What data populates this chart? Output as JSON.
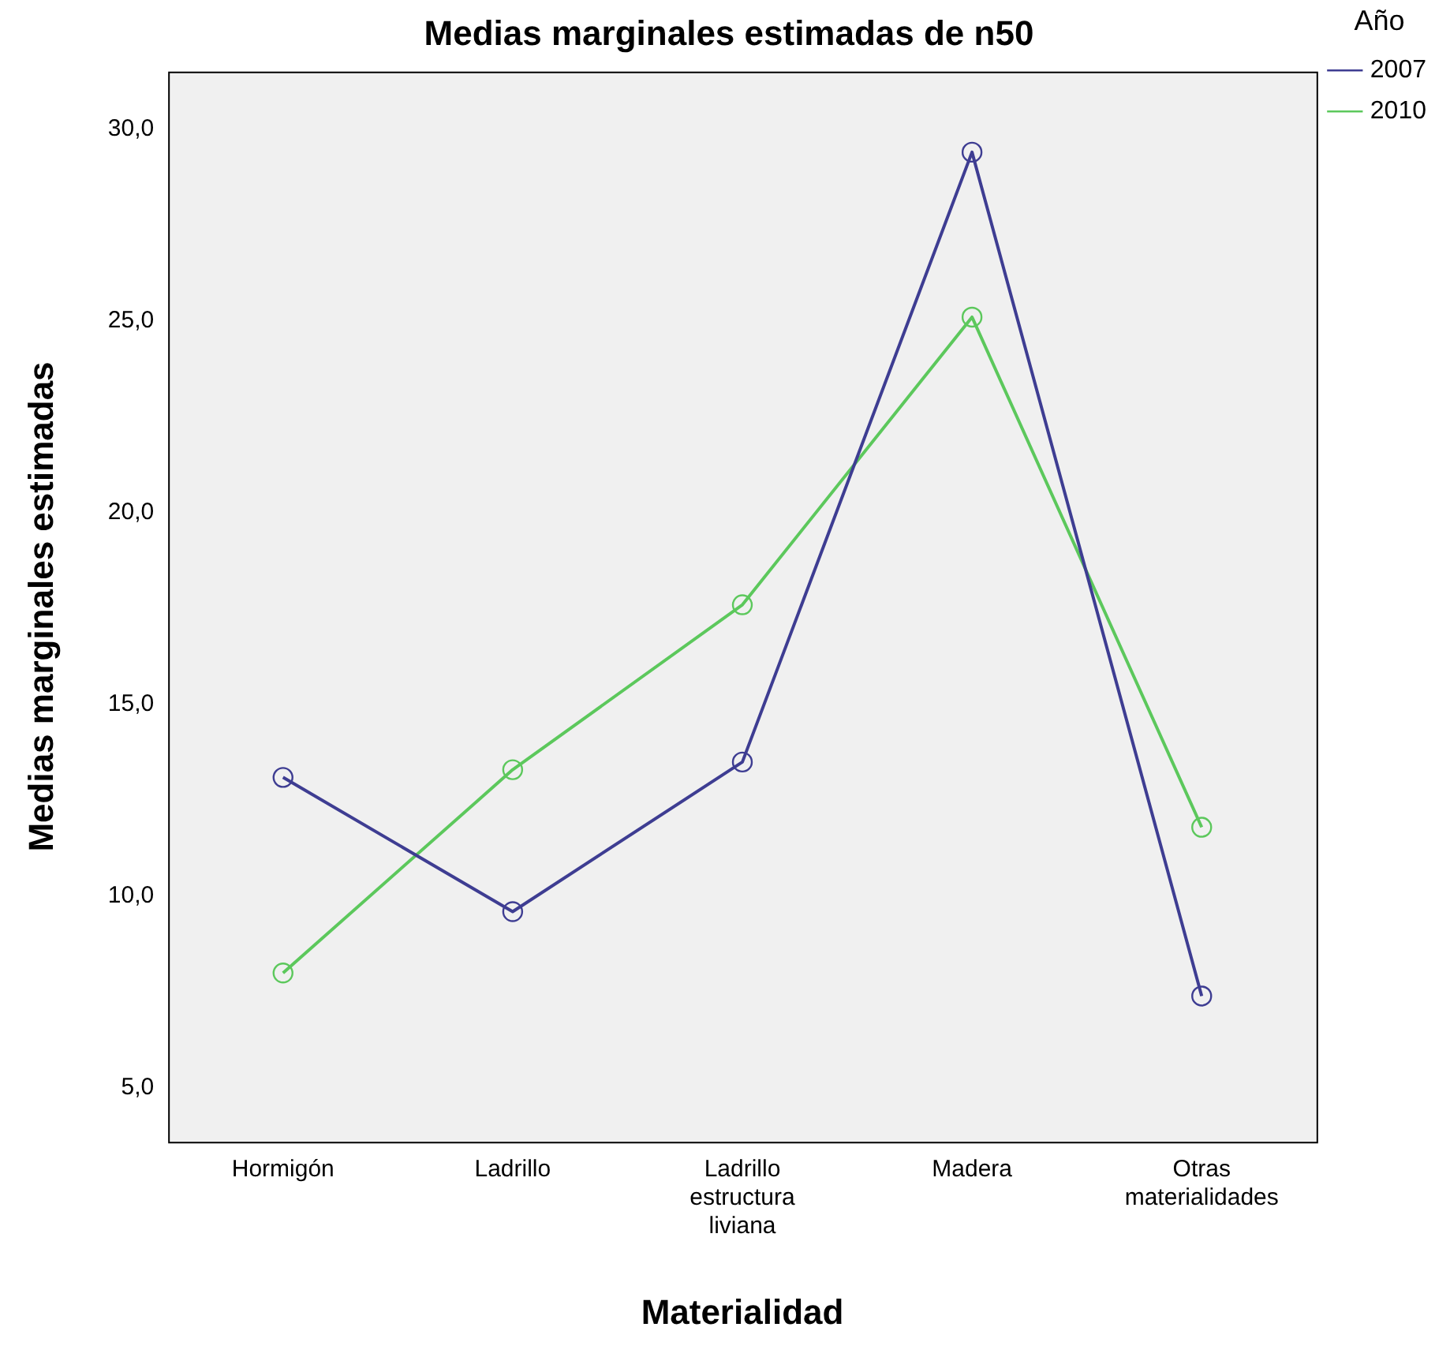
{
  "chart_data": {
    "type": "line",
    "title": "Medias marginales estimadas de n50",
    "xlabel": "Materialidad",
    "ylabel": "Medias marginales estimadas",
    "legend_title": "Año",
    "categories": [
      "Hormigón",
      "Ladrillo",
      "Ladrillo estructura liviana",
      "Madera",
      "Otras materialidades"
    ],
    "series": [
      {
        "name": "2007",
        "color": "#3e3d92",
        "values": [
          13.1,
          9.6,
          13.5,
          29.4,
          7.4
        ]
      },
      {
        "name": "2010",
        "color": "#5cc85c",
        "values": [
          8.0,
          13.3,
          17.6,
          25.1,
          11.8
        ]
      }
    ],
    "ylim": [
      3.6,
      31.5
    ],
    "yticks": [
      {
        "value": 5,
        "label": "5,0"
      },
      {
        "value": 10,
        "label": "10,0"
      },
      {
        "value": 15,
        "label": "15,0"
      },
      {
        "value": 20,
        "label": "20,0"
      },
      {
        "value": 25,
        "label": "25,0"
      },
      {
        "value": 30,
        "label": "30,0"
      }
    ],
    "grid": false,
    "legend": "top right",
    "marker": "circle",
    "line_style": "solid"
  }
}
